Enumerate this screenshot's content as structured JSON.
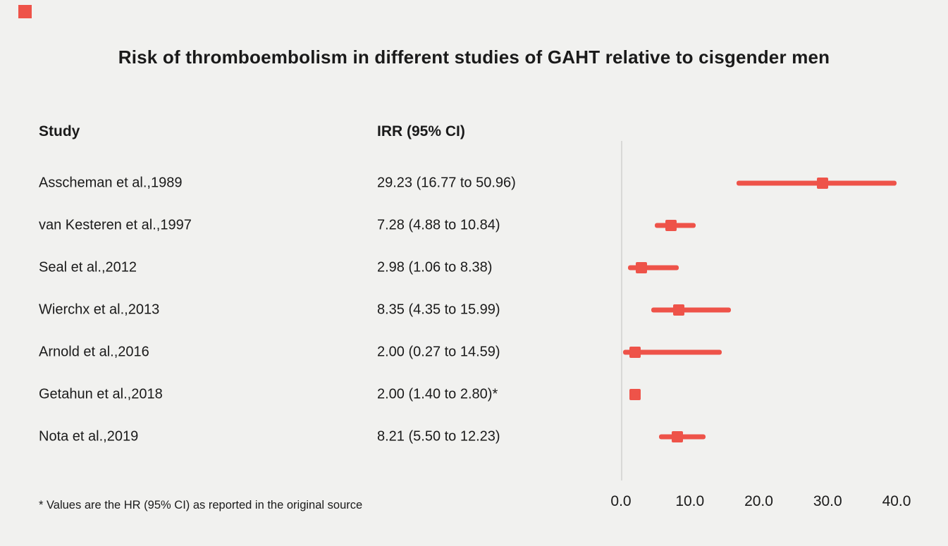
{
  "page": {
    "title": "Risk of thromboembolism in different studies of GAHT relative to cisgender men",
    "footnote": "* Values are the HR (95% CI) as reported in the original source",
    "background_color": "#f1f1ef",
    "accent_color": "#ee5349",
    "gridline_color": "#d9d9d7",
    "logo": "red-square"
  },
  "table": {
    "study_header": "Study",
    "value_header": "IRR (95% CI)"
  },
  "chart_data": {
    "type": "scatter",
    "subtype": "forest-plot",
    "title": "Risk of thromboembolism in different studies of GAHT relative to cisgender men",
    "xlabel": "",
    "ylabel": "",
    "xlim": [
      0,
      40
    ],
    "ticks": [
      0,
      10,
      20,
      30,
      40
    ],
    "tick_labels": [
      "0.0",
      "10.0",
      "20.0",
      "30.0",
      "40.0"
    ],
    "grid": "single-vertical-line-at-zero",
    "legend_position": "none",
    "marker_color": "#ee5349",
    "studies": [
      {
        "label": "Asscheman et al.,1989",
        "value_text": "29.23 (16.77 to 50.96)",
        "estimate": 29.23,
        "ci_low": 16.77,
        "ci_high": 50.96
      },
      {
        "label": "van Kesteren et al.,1997",
        "value_text": "7.28 (4.88 to 10.84)",
        "estimate": 7.28,
        "ci_low": 4.88,
        "ci_high": 10.84
      },
      {
        "label": "Seal et al.,2012",
        "value_text": "2.98 (1.06 to 8.38)",
        "estimate": 2.98,
        "ci_low": 1.06,
        "ci_high": 8.38
      },
      {
        "label": "Wierchx et al.,2013",
        "value_text": "8.35 (4.35 to 15.99)",
        "estimate": 8.35,
        "ci_low": 4.35,
        "ci_high": 15.99
      },
      {
        "label": "Arnold et al.,2016",
        "value_text": "2.00 (0.27 to 14.59)",
        "estimate": 2.0,
        "ci_low": 0.27,
        "ci_high": 14.59
      },
      {
        "label": "Getahun et al.,2018",
        "value_text": "2.00 (1.40 to 2.80)*",
        "estimate": 2.0,
        "ci_low": 1.4,
        "ci_high": 2.8
      },
      {
        "label": "Nota et al.,2019",
        "value_text": "8.21 (5.50 to 12.23)",
        "estimate": 8.21,
        "ci_low": 5.5,
        "ci_high": 12.23
      }
    ]
  }
}
